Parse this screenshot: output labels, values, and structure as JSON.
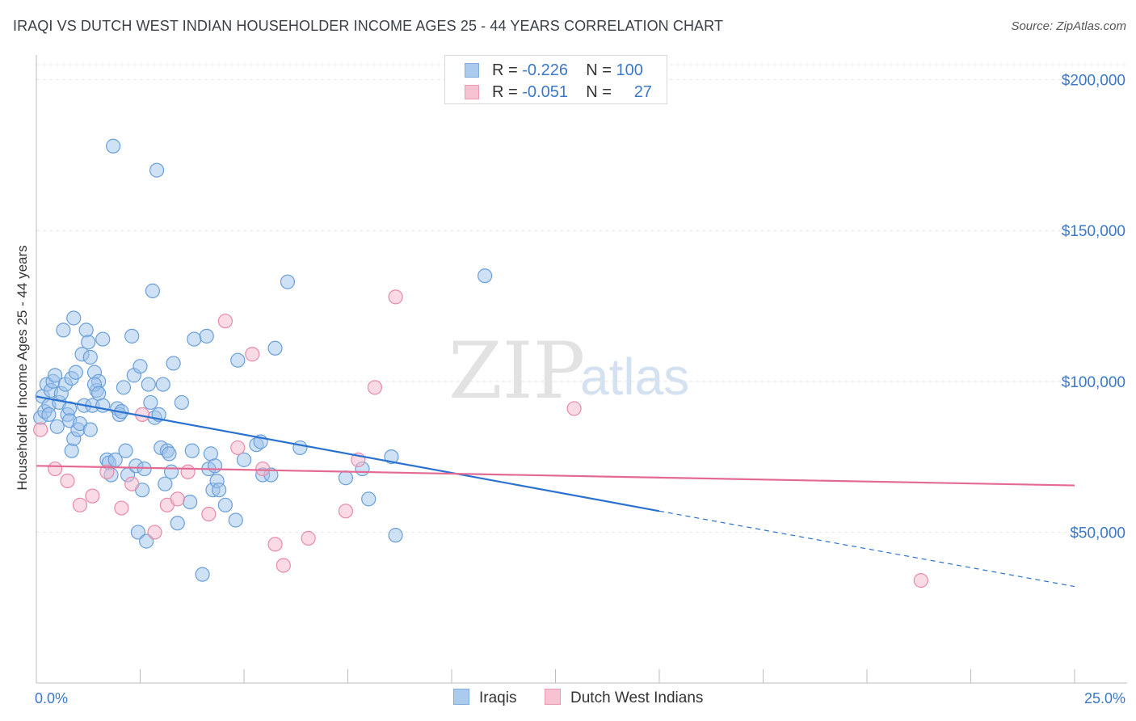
{
  "title": "IRAQI VS DUTCH WEST INDIAN HOUSEHOLDER INCOME AGES 25 - 44 YEARS CORRELATION CHART",
  "source": "Source: ZipAtlas.com",
  "watermark": {
    "zip": "ZIP",
    "atlas": "atlas"
  },
  "colors": {
    "iraqi_fill": "#9dc3ec",
    "iraqi_stroke": "#6a9fd8",
    "iraqi_line": "#2b72d0",
    "dutch_fill": "#f6b8cb",
    "dutch_stroke": "#e68aa8",
    "dutch_line": "#e36a93",
    "axis_text": "#3b78c8",
    "grid": "#e4e4e4"
  },
  "legend": {
    "rows": [
      {
        "r_label": "R =",
        "r_value": "-0.226",
        "n_label": "N =",
        "n_value": "100"
      },
      {
        "r_label": "R =",
        "r_value": "-0.051",
        "n_label": "N =",
        "n_value": "27"
      }
    ],
    "bottom": [
      "Iraqis",
      "Dutch West Indians"
    ]
  },
  "chart_data": {
    "type": "scatter",
    "title": "IRAQI VS DUTCH WEST INDIAN HOUSEHOLDER INCOME AGES 25 - 44 YEARS CORRELATION CHART",
    "xlabel": "",
    "ylabel": "Householder Income Ages 25 - 44 years",
    "xlim": [
      0,
      25
    ],
    "ylim": [
      0,
      205000
    ],
    "x_tick_labels": [
      "0.0%",
      "25.0%"
    ],
    "y_ticks": [
      50000,
      100000,
      150000,
      200000
    ],
    "y_tick_labels": [
      "$50,000",
      "$100,000",
      "$150,000",
      "$200,000"
    ],
    "grid": true,
    "series": [
      {
        "name": "Iraqis",
        "points": [
          [
            0.1,
            88000
          ],
          [
            0.15,
            95000
          ],
          [
            0.2,
            90000
          ],
          [
            0.25,
            99000
          ],
          [
            0.3,
            92000
          ],
          [
            0.35,
            97000
          ],
          [
            0.4,
            100000
          ],
          [
            0.45,
            102000
          ],
          [
            0.5,
            85000
          ],
          [
            0.55,
            93000
          ],
          [
            0.6,
            96000
          ],
          [
            0.65,
            117000
          ],
          [
            0.7,
            99000
          ],
          [
            0.75,
            89000
          ],
          [
            0.8,
            91000
          ],
          [
            0.85,
            101000
          ],
          [
            0.9,
            121000
          ],
          [
            0.95,
            103000
          ],
          [
            0.3,
            89000
          ],
          [
            0.8,
            87000
          ],
          [
            0.85,
            77000
          ],
          [
            0.9,
            81000
          ],
          [
            1.0,
            84000
          ],
          [
            1.05,
            86000
          ],
          [
            1.1,
            109000
          ],
          [
            1.15,
            92000
          ],
          [
            1.2,
            117000
          ],
          [
            1.25,
            113000
          ],
          [
            1.3,
            108000
          ],
          [
            1.35,
            92000
          ],
          [
            1.4,
            103000
          ],
          [
            1.45,
            97000
          ],
          [
            1.5,
            100000
          ],
          [
            1.6,
            114000
          ],
          [
            1.3,
            84000
          ],
          [
            1.4,
            99000
          ],
          [
            1.5,
            96000
          ],
          [
            1.6,
            92000
          ],
          [
            1.7,
            74000
          ],
          [
            1.75,
            73000
          ],
          [
            1.8,
            69000
          ],
          [
            1.85,
            178000
          ],
          [
            1.9,
            74000
          ],
          [
            1.95,
            91000
          ],
          [
            2.0,
            89000
          ],
          [
            2.05,
            90000
          ],
          [
            2.1,
            98000
          ],
          [
            2.15,
            77000
          ],
          [
            2.2,
            69000
          ],
          [
            2.3,
            115000
          ],
          [
            2.35,
            102000
          ],
          [
            2.4,
            72000
          ],
          [
            2.45,
            50000
          ],
          [
            2.5,
            105000
          ],
          [
            2.55,
            64000
          ],
          [
            2.6,
            71000
          ],
          [
            2.65,
            47000
          ],
          [
            2.7,
            99000
          ],
          [
            2.75,
            93000
          ],
          [
            2.8,
            130000
          ],
          [
            2.85,
            88000
          ],
          [
            2.9,
            170000
          ],
          [
            2.95,
            89000
          ],
          [
            3.0,
            78000
          ],
          [
            3.05,
            99000
          ],
          [
            3.1,
            66000
          ],
          [
            3.15,
            77000
          ],
          [
            3.2,
            76000
          ],
          [
            3.25,
            70000
          ],
          [
            3.3,
            106000
          ],
          [
            3.4,
            53000
          ],
          [
            3.5,
            93000
          ],
          [
            3.7,
            60000
          ],
          [
            3.75,
            77000
          ],
          [
            3.8,
            114000
          ],
          [
            4.0,
            36000
          ],
          [
            4.1,
            115000
          ],
          [
            4.15,
            71000
          ],
          [
            4.2,
            76000
          ],
          [
            4.25,
            64000
          ],
          [
            4.3,
            72000
          ],
          [
            4.35,
            67000
          ],
          [
            4.4,
            64000
          ],
          [
            4.55,
            59000
          ],
          [
            4.8,
            54000
          ],
          [
            4.85,
            107000
          ],
          [
            5.0,
            74000
          ],
          [
            5.3,
            79000
          ],
          [
            5.4,
            80000
          ],
          [
            5.45,
            69000
          ],
          [
            5.65,
            69000
          ],
          [
            5.75,
            111000
          ],
          [
            6.05,
            133000
          ],
          [
            6.35,
            78000
          ],
          [
            7.45,
            68000
          ],
          [
            7.85,
            71000
          ],
          [
            8.0,
            61000
          ],
          [
            8.55,
            75000
          ],
          [
            8.65,
            49000
          ],
          [
            10.8,
            135000
          ]
        ],
        "trend": {
          "x0": 0,
          "y0": 95000,
          "x1": 15,
          "y1": 57000,
          "dashed_to_x": 25,
          "dashed_to_y": 32000
        }
      },
      {
        "name": "Dutch West Indians",
        "points": [
          [
            0.1,
            84000
          ],
          [
            0.45,
            71000
          ],
          [
            0.75,
            67000
          ],
          [
            1.05,
            59000
          ],
          [
            1.35,
            62000
          ],
          [
            1.7,
            70000
          ],
          [
            2.05,
            58000
          ],
          [
            2.3,
            66000
          ],
          [
            2.55,
            89000
          ],
          [
            2.85,
            50000
          ],
          [
            3.15,
            59000
          ],
          [
            3.4,
            61000
          ],
          [
            3.65,
            70000
          ],
          [
            4.15,
            56000
          ],
          [
            4.55,
            120000
          ],
          [
            4.85,
            78000
          ],
          [
            5.2,
            109000
          ],
          [
            5.45,
            71000
          ],
          [
            5.75,
            46000
          ],
          [
            5.95,
            39000
          ],
          [
            6.55,
            48000
          ],
          [
            7.45,
            57000
          ],
          [
            7.75,
            74000
          ],
          [
            8.15,
            98000
          ],
          [
            8.65,
            128000
          ],
          [
            12.95,
            91000
          ],
          [
            21.3,
            34000
          ]
        ],
        "trend": {
          "x0": 0,
          "y0": 72000,
          "x1": 25,
          "y1": 65500
        }
      }
    ]
  }
}
